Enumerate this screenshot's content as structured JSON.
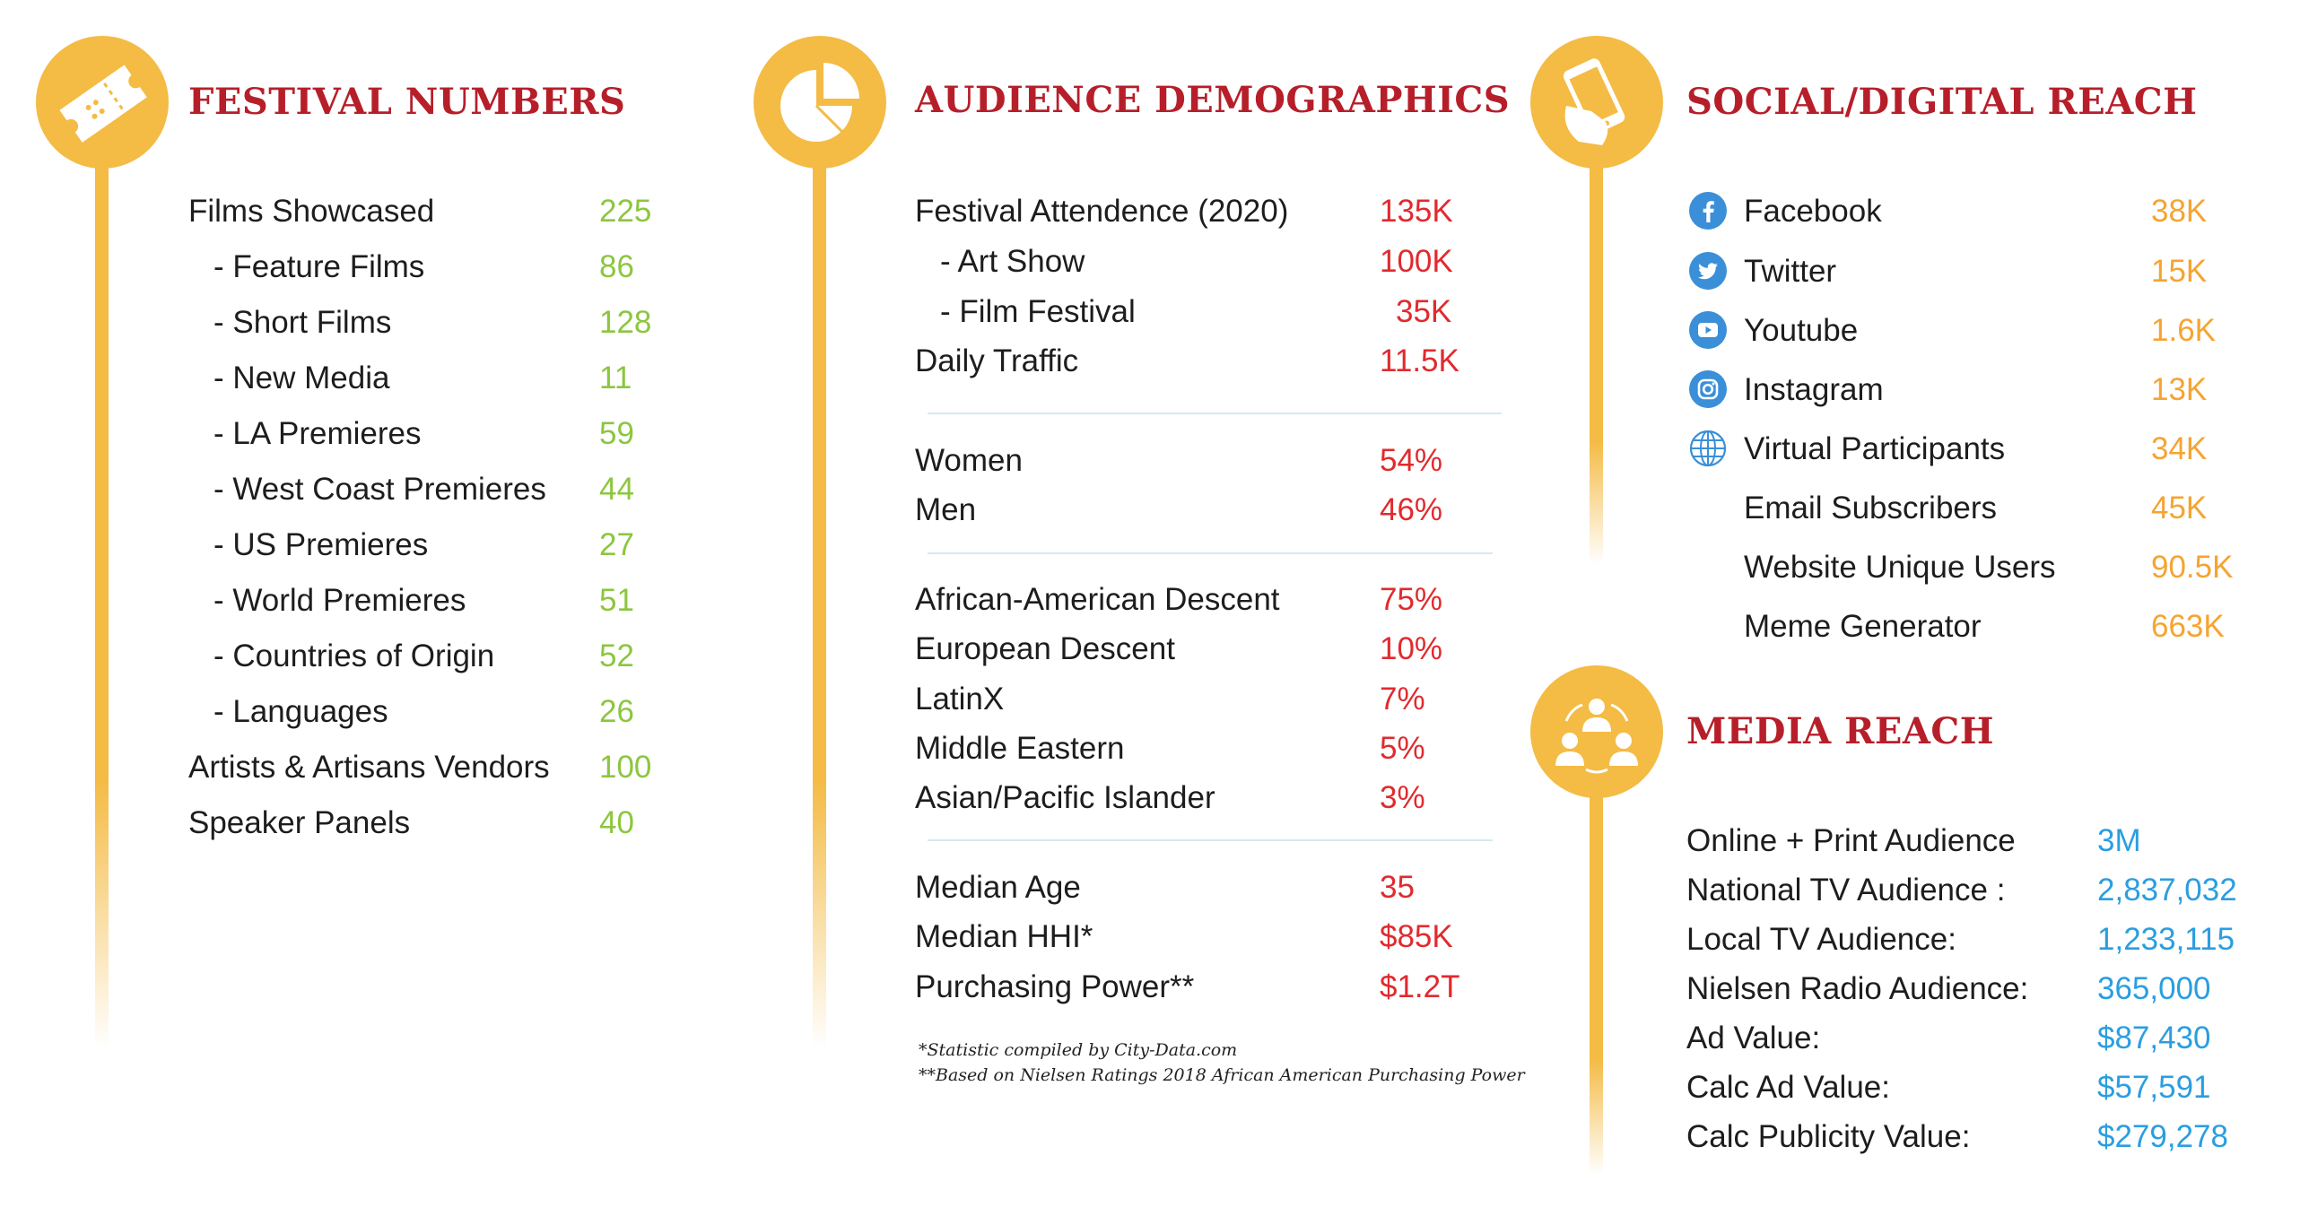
{
  "colors": {
    "gold": "#f4bb45",
    "title_red": "#b61f2a",
    "green": "#8cc63f",
    "red": "#e12a2e",
    "orange": "#f5a431",
    "blue": "#2a9ee0"
  },
  "festival": {
    "title": "FESTIVAL NUMBERS",
    "icon": "ticket-icon",
    "rows": [
      {
        "label": "Films Showcased",
        "value": "225"
      },
      {
        "label": "- Feature Films",
        "value": "86"
      },
      {
        "label": "- Short Films",
        "value": "128"
      },
      {
        "label": "- New Media",
        "value": "11"
      },
      {
        "label": "- LA Premieres",
        "value": "59"
      },
      {
        "label": "- West Coast Premieres",
        "value": "44"
      },
      {
        "label": "- US Premieres",
        "value": "27"
      },
      {
        "label": "- World Premieres",
        "value": "51"
      },
      {
        "label": "- Countries of Origin",
        "value": "52"
      },
      {
        "label": "- Languages",
        "value": "26"
      },
      {
        "label": "Artists & Artisans Vendors",
        "value": "100"
      },
      {
        "label": "Speaker Panels",
        "value": "40"
      }
    ]
  },
  "audience": {
    "title": "AUDIENCE DEMOGRAPHICS",
    "icon": "pie-chart-icon",
    "attendance": [
      {
        "label": "Festival Attendence (2020)",
        "value": "135K"
      },
      {
        "label": "- Art Show",
        "value": "100K"
      },
      {
        "label": "- Film Festival",
        "value": "35K"
      },
      {
        "label": "Daily Traffic",
        "value": "11.5K"
      }
    ],
    "gender": [
      {
        "label": "Women",
        "value": "54%"
      },
      {
        "label": "Men",
        "value": "46%"
      }
    ],
    "ethnicity": [
      {
        "label": "African-American Descent",
        "value": "75%"
      },
      {
        "label": "European Descent",
        "value": "10%"
      },
      {
        "label": "LatinX",
        "value": "7%"
      },
      {
        "label": "Middle Eastern",
        "value": "5%"
      },
      {
        "label": "Asian/Pacific Islander",
        "value": "3%"
      }
    ],
    "economics": [
      {
        "label": "Median Age",
        "value": "35"
      },
      {
        "label": "Median HHI*",
        "value": "$85K"
      },
      {
        "label": "Purchasing Power**",
        "value": "$1.2T"
      }
    ],
    "notes": [
      "*Statistic compiled by City-Data.com",
      "**Based on Nielsen Ratings 2018 African American Purchasing Power"
    ]
  },
  "social": {
    "title": "SOCIAL/DIGITAL REACH",
    "icon": "phone-hand-icon",
    "rows": [
      {
        "label": "Facebook",
        "value": "38K",
        "icon": "facebook-icon"
      },
      {
        "label": "Twitter",
        "value": "15K",
        "icon": "twitter-icon"
      },
      {
        "label": "Youtube",
        "value": "1.6K",
        "icon": "youtube-icon"
      },
      {
        "label": "Instagram",
        "value": "13K",
        "icon": "instagram-icon"
      },
      {
        "label": "Virtual Participants",
        "value": "34K",
        "icon": "globe-icon"
      },
      {
        "label": "Email Subscribers",
        "value": "45K"
      },
      {
        "label": "Website Unique Users",
        "value": "90.5K"
      },
      {
        "label": "Meme Generator",
        "value": "663K"
      }
    ]
  },
  "media": {
    "title": "MEDIA REACH",
    "icon": "people-network-icon",
    "rows": [
      {
        "label": "Online + Print Audience",
        "value": "3M"
      },
      {
        "label": "National TV Audience :",
        "value": "2,837,032"
      },
      {
        "label": "Local TV Audience:",
        "value": "1,233,115"
      },
      {
        "label": "Nielsen Radio Audience:",
        "value": "365,000"
      },
      {
        "label": "Ad Value:",
        "value": "$87,430"
      },
      {
        "label": "Calc Ad Value:",
        "value": "$57,591"
      },
      {
        "label": "Calc Publicity Value:",
        "value": "$279,278"
      }
    ]
  }
}
